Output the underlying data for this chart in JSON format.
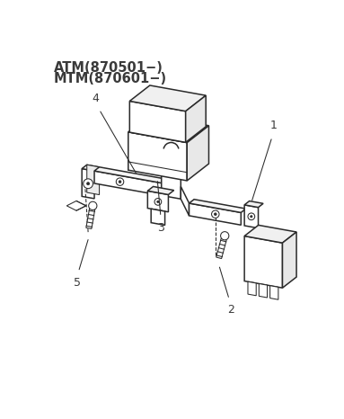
{
  "title_line1": "ATM(870501−)",
  "title_line2": "MTM(870601−)",
  "bg_color": "#ffffff",
  "line_color": "#2a2a2a",
  "text_color": "#3a3a3a",
  "label_fontsize": 9,
  "title_fontsize": 10.5
}
